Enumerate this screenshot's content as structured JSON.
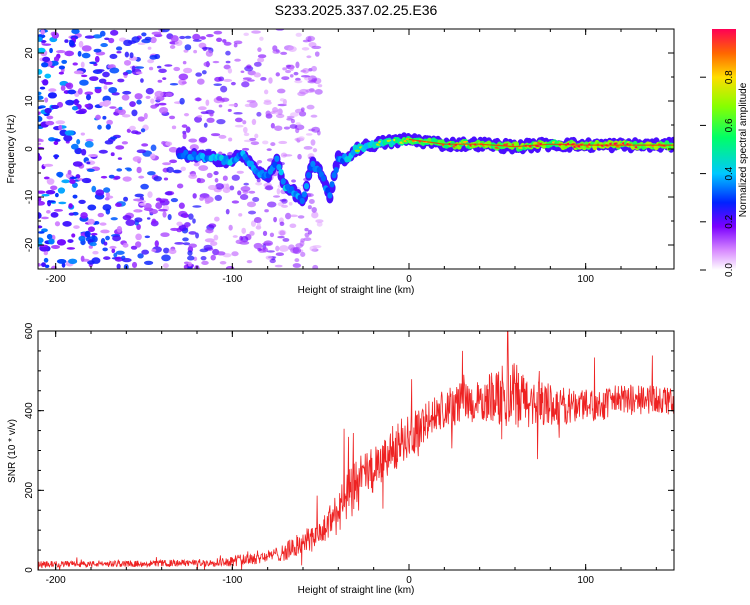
{
  "figure_title": "S233.2025.337.02.25.E36",
  "colors": {
    "snr_line": "#ee2222",
    "ridge_core": "#ff2a00",
    "ridge_mid": "#00dd66",
    "ridge_outer": "#00c8ff",
    "scatter": "#7a22ff",
    "frame": "#000000"
  },
  "colorbar": {
    "label": "Normalized spectral amplitude",
    "ticks": [
      "0.0",
      "0.2",
      "0.4",
      "0.6",
      "0.8"
    ],
    "range": [
      0,
      1
    ]
  },
  "chart_data": [
    {
      "type": "heatmap",
      "id": "spectrogram",
      "title": "",
      "xlabel": "Height of straight line (km)",
      "ylabel": "Frequency (Hz)",
      "xlim": [
        -210,
        150
      ],
      "ylim": [
        -25,
        25
      ],
      "xticks": [
        "-200",
        "-100",
        "0",
        "100"
      ],
      "yticks": [
        "-20",
        "-10",
        "0",
        "10",
        "20"
      ],
      "ridge": {
        "x": [
          -130,
          -120,
          -110,
          -100,
          -95,
          -90,
          -85,
          -80,
          -75,
          -70,
          -65,
          -60,
          -55,
          -50,
          -45,
          -40,
          -35,
          -30,
          -20,
          -10,
          0,
          20,
          40,
          60,
          80,
          100,
          120,
          150
        ],
        "y": [
          -1,
          -1.5,
          -2,
          -2.5,
          -1,
          -3,
          -5,
          -6,
          -2,
          -8,
          -9,
          -11,
          -3,
          -5,
          -10,
          -2,
          -2,
          0,
          1,
          1.5,
          2,
          1,
          1,
          0.5,
          1,
          0.8,
          0.8,
          0.8
        ],
        "amplitude": [
          0.45,
          0.5,
          0.55,
          0.55,
          0.5,
          0.55,
          0.55,
          0.5,
          0.5,
          0.55,
          0.5,
          0.5,
          0.45,
          0.5,
          0.45,
          0.45,
          0.55,
          0.6,
          0.65,
          0.7,
          0.8,
          0.85,
          0.9,
          0.9,
          0.9,
          0.95,
          0.95,
          0.9
        ]
      },
      "noise_region": {
        "x_range": [
          -210,
          -50
        ],
        "y_range": [
          -25,
          25
        ],
        "amplitude_range": [
          0.05,
          0.4
        ]
      }
    },
    {
      "type": "line",
      "id": "snr",
      "title": "",
      "xlabel": "Height of straight line (km)",
      "ylabel": "SNR (10 * v/v)",
      "xlim": [
        -210,
        150
      ],
      "ylim": [
        0,
        600
      ],
      "xticks": [
        "-200",
        "-100",
        "0",
        "100"
      ],
      "yticks": [
        "0",
        "200",
        "400",
        "600"
      ],
      "series": [
        {
          "name": "SNR",
          "envelope_x": [
            -210,
            -180,
            -150,
            -120,
            -100,
            -90,
            -80,
            -70,
            -60,
            -50,
            -40,
            -30,
            -20,
            -10,
            0,
            10,
            20,
            30,
            40,
            50,
            60,
            70,
            80,
            90,
            100,
            110,
            120,
            130,
            140,
            150
          ],
          "envelope_mean": [
            15,
            15,
            16,
            18,
            22,
            30,
            35,
            45,
            70,
            90,
            150,
            210,
            250,
            300,
            340,
            370,
            400,
            420,
            420,
            440,
            430,
            420,
            415,
            410,
            420,
            415,
            430,
            425,
            430,
            420
          ],
          "envelope_spread": [
            12,
            12,
            12,
            14,
            20,
            30,
            20,
            35,
            50,
            55,
            90,
            110,
            90,
            90,
            90,
            80,
            80,
            80,
            80,
            110,
            140,
            90,
            80,
            70,
            70,
            60,
            60,
            60,
            60,
            60
          ],
          "peak_value": 600,
          "peak_x": 56
        }
      ]
    }
  ]
}
